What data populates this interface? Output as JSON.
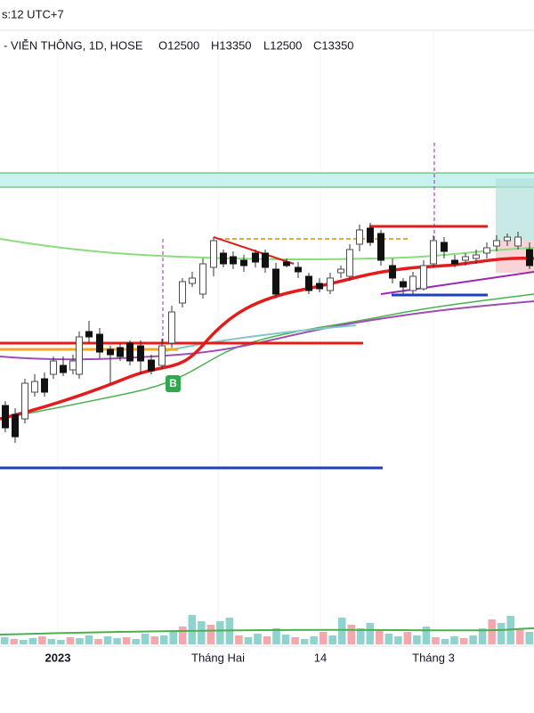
{
  "header": {
    "time": "s:12 UTC+7",
    "symbol": "- VIỄN THÔNG, 1D, HOSE",
    "ohlc": [
      "O12500",
      "H13350",
      "L12500",
      "C13350"
    ]
  },
  "x_axis": {
    "labels": [
      "2023",
      "Tháng Hai",
      "14",
      "Tháng 3"
    ]
  },
  "signal": {
    "label": "B"
  }
}
